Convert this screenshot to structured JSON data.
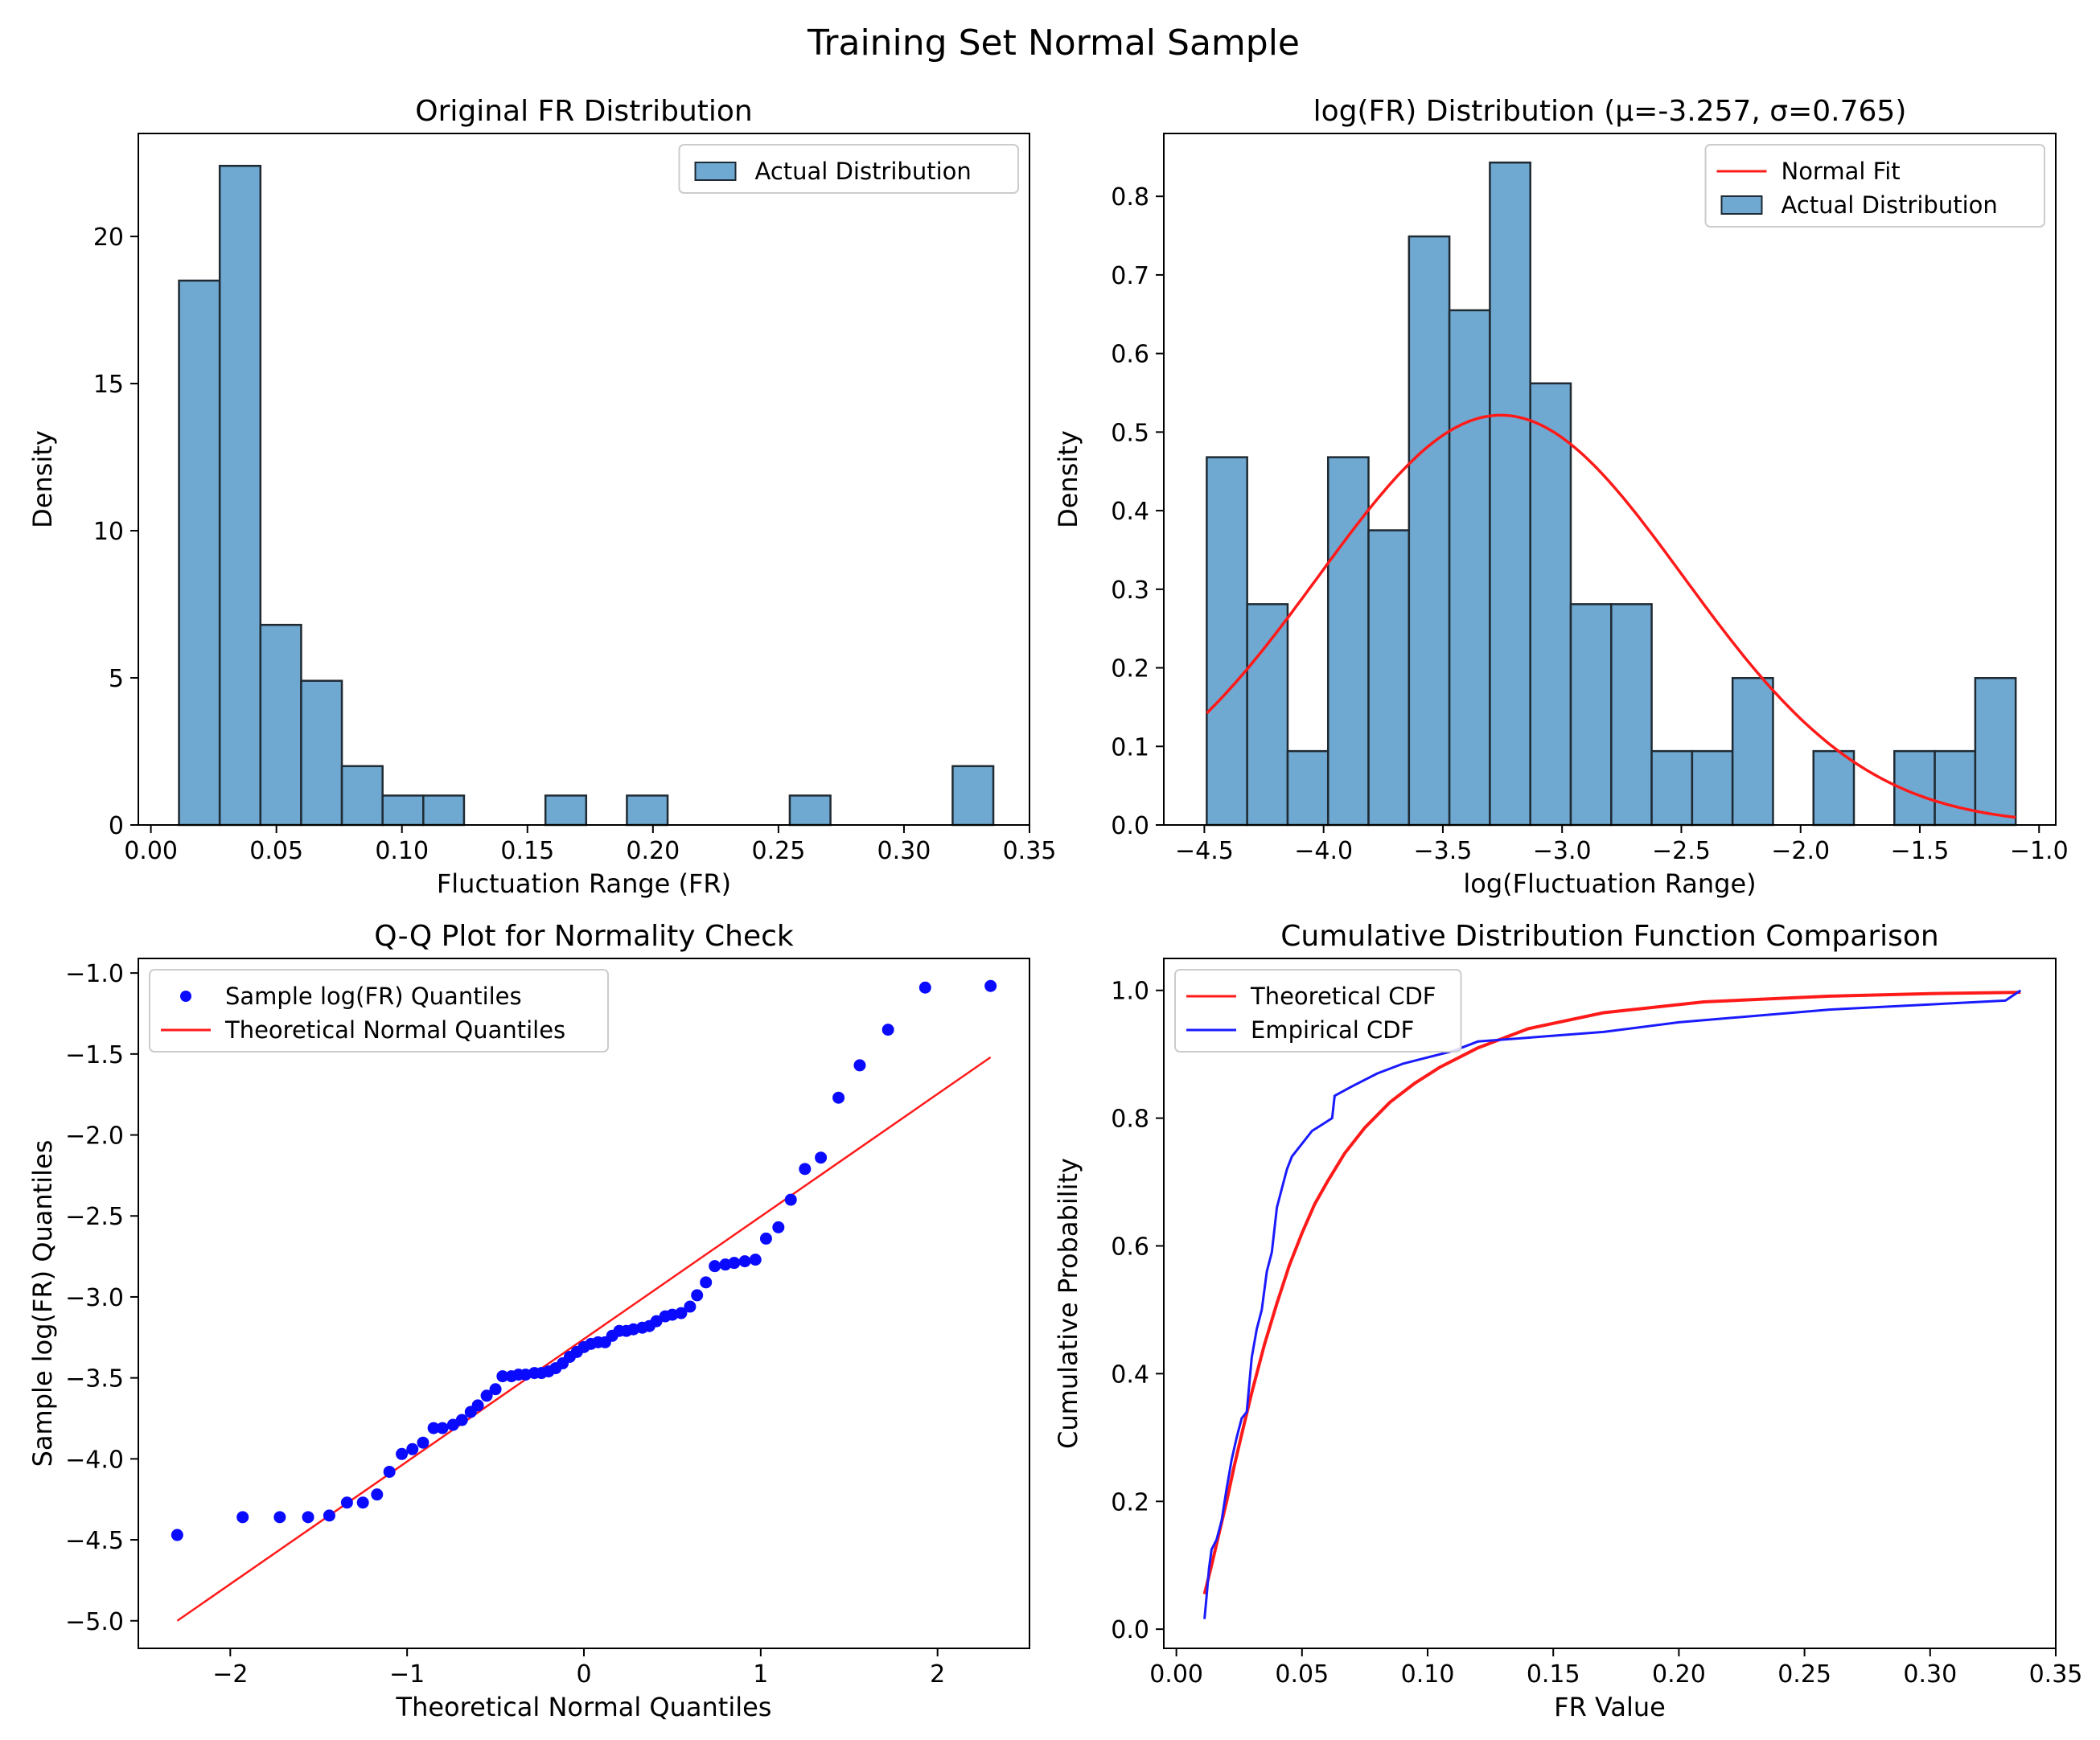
{
  "figure": {
    "title": "Training Set Normal Sample"
  },
  "colors": {
    "bar_fill": "#6fa8d0",
    "bar_edge": "#1f2a33",
    "fit_line": "#ff1a1a",
    "points": "#0a0aff",
    "empirical_line": "#1a1aff",
    "axis": "#000000"
  },
  "chart_data": [
    {
      "id": "hist-fr",
      "type": "bar",
      "title": "Original FR Distribution",
      "xlabel": "Fluctuation Range (FR)",
      "ylabel": "Density",
      "xlim": [
        -0.005,
        0.35
      ],
      "ylim": [
        0,
        23.5
      ],
      "xticks": [
        0.0,
        0.05,
        0.1,
        0.15,
        0.2,
        0.25,
        0.3,
        0.35
      ],
      "xtick_labels": [
        "0.00",
        "0.05",
        "0.10",
        "0.15",
        "0.20",
        "0.25",
        "0.30",
        "0.35"
      ],
      "yticks": [
        0,
        5,
        10,
        15,
        20
      ],
      "ytick_labels": [
        "0",
        "5",
        "10",
        "15",
        "20"
      ],
      "legend": [
        "Actual Distribution"
      ],
      "legend_loc": "upper right",
      "bin_start": 0.0112,
      "bin_width": 0.01622,
      "values": [
        18.5,
        22.4,
        6.8,
        4.9,
        2.0,
        1.0,
        1.0,
        0,
        0,
        1.0,
        0,
        1.0,
        0,
        0,
        0,
        1.0,
        0,
        0,
        0,
        2.0
      ]
    },
    {
      "id": "hist-logfr",
      "type": "bar",
      "title": "log(FR) Distribution (μ=-3.257, σ=0.765)",
      "xlabel": "log(Fluctuation Range)",
      "ylabel": "Density",
      "xlim": [
        -4.67,
        -0.93
      ],
      "ylim": [
        0,
        0.88
      ],
      "xticks": [
        -4.5,
        -4.0,
        -3.5,
        -3.0,
        -2.5,
        -2.0,
        -1.5,
        -1.0
      ],
      "xtick_labels": [
        "−4.5",
        "−4.0",
        "−3.5",
        "−3.0",
        "−2.5",
        "−2.0",
        "−1.5",
        "−1.0"
      ],
      "yticks": [
        0.0,
        0.1,
        0.2,
        0.3,
        0.4,
        0.5,
        0.6,
        0.7,
        0.8
      ],
      "ytick_labels": [
        "0.0",
        "0.1",
        "0.2",
        "0.3",
        "0.4",
        "0.5",
        "0.6",
        "0.7",
        "0.8"
      ],
      "legend": [
        "Normal Fit",
        "Actual Distribution"
      ],
      "legend_loc": "upper right",
      "bin_start": -4.49,
      "bin_width": 0.1696,
      "values": [
        0.468,
        0.281,
        0.094,
        0.468,
        0.375,
        0.749,
        0.655,
        0.843,
        0.562,
        0.281,
        0.281,
        0.094,
        0.094,
        0.187,
        0,
        0.094,
        0,
        0.094,
        0.094,
        0.187
      ],
      "fit": {
        "mu": -3.257,
        "sigma": 0.765,
        "x_range": [
          -4.49,
          -1.098
        ]
      }
    },
    {
      "id": "qq-plot",
      "type": "scatter",
      "title": "Q-Q Plot for Normality Check",
      "xlabel": "Theoretical Normal Quantiles",
      "ylabel": "Sample log(FR) Quantiles",
      "xlim": [
        -2.52,
        2.52
      ],
      "ylim": [
        -5.17,
        -0.91
      ],
      "xticks": [
        -2,
        -1,
        0,
        1,
        2
      ],
      "xtick_labels": [
        "−2",
        "−1",
        "0",
        "1",
        "2"
      ],
      "yticks": [
        -5.0,
        -4.5,
        -4.0,
        -3.5,
        -3.0,
        -2.5,
        -2.0,
        -1.5,
        -1.0
      ],
      "ytick_labels": [
        "−5.0",
        "−4.5",
        "−4.0",
        "−3.5",
        "−3.0",
        "−2.5",
        "−2.0",
        "−1.5",
        "−1.0"
      ],
      "legend": [
        "Sample log(FR) Quantiles",
        "Theoretical Normal Quantiles"
      ],
      "legend_loc": "upper left",
      "line": {
        "x": [
          -2.3,
          2.3
        ],
        "y": [
          -5.0,
          -1.52
        ]
      },
      "points": {
        "x": [
          -2.3,
          -1.93,
          -1.72,
          -1.56,
          -1.44,
          -1.34,
          -1.25,
          -1.17,
          -1.1,
          -1.03,
          -0.97,
          -0.91,
          -0.85,
          -0.8,
          -0.74,
          -0.69,
          -0.64,
          -0.6,
          -0.55,
          -0.5,
          -0.46,
          -0.41,
          -0.37,
          -0.33,
          -0.28,
          -0.24,
          -0.2,
          -0.16,
          -0.12,
          -0.08,
          -0.04,
          0.0,
          0.04,
          0.08,
          0.12,
          0.16,
          0.2,
          0.24,
          0.28,
          0.33,
          0.37,
          0.41,
          0.46,
          0.5,
          0.55,
          0.6,
          0.64,
          0.69,
          0.74,
          0.8,
          0.85,
          0.91,
          0.97,
          1.03,
          1.1,
          1.17,
          1.25,
          1.34,
          1.44,
          1.56,
          1.72,
          1.93,
          2.3
        ],
        "y": [
          -4.47,
          -4.36,
          -4.36,
          -4.36,
          -4.35,
          -4.27,
          -4.27,
          -4.22,
          -4.08,
          -3.97,
          -3.94,
          -3.9,
          -3.81,
          -3.81,
          -3.79,
          -3.76,
          -3.71,
          -3.67,
          -3.61,
          -3.57,
          -3.49,
          -3.49,
          -3.48,
          -3.48,
          -3.47,
          -3.47,
          -3.46,
          -3.44,
          -3.41,
          -3.37,
          -3.34,
          -3.31,
          -3.29,
          -3.28,
          -3.28,
          -3.24,
          -3.21,
          -3.21,
          -3.2,
          -3.19,
          -3.18,
          -3.15,
          -3.12,
          -3.11,
          -3.1,
          -3.06,
          -2.99,
          -2.91,
          -2.81,
          -2.8,
          -2.79,
          -2.78,
          -2.77,
          -2.64,
          -2.57,
          -2.4,
          -2.21,
          -2.14,
          -1.77,
          -1.57,
          -1.35,
          -1.09,
          -1.08
        ]
      }
    },
    {
      "id": "cdf-compare",
      "type": "line",
      "title": "Cumulative Distribution Function Comparison",
      "xlabel": "FR Value",
      "ylabel": "Cumulative Probability",
      "xlim": [
        -0.005,
        0.35
      ],
      "ylim": [
        -0.03,
        1.05
      ],
      "xticks": [
        0.0,
        0.05,
        0.1,
        0.15,
        0.2,
        0.25,
        0.3,
        0.35
      ],
      "xtick_labels": [
        "0.00",
        "0.05",
        "0.10",
        "0.15",
        "0.20",
        "0.25",
        "0.30",
        "0.35"
      ],
      "yticks": [
        0.0,
        0.2,
        0.4,
        0.6,
        0.8,
        1.0
      ],
      "ytick_labels": [
        "0.0",
        "0.2",
        "0.4",
        "0.6",
        "0.8",
        "1.0"
      ],
      "legend": [
        "Theoretical CDF",
        "Empirical CDF"
      ],
      "legend_loc": "upper left",
      "series": [
        {
          "name": "Theoretical CDF",
          "x": [
            0.0112,
            0.014,
            0.017,
            0.02,
            0.023,
            0.026,
            0.03,
            0.035,
            0.04,
            0.045,
            0.05,
            0.055,
            0.06,
            0.067,
            0.075,
            0.085,
            0.095,
            0.105,
            0.12,
            0.14,
            0.17,
            0.21,
            0.26,
            0.3,
            0.336
          ],
          "y": [
            0.055,
            0.1,
            0.15,
            0.2,
            0.255,
            0.305,
            0.37,
            0.445,
            0.51,
            0.57,
            0.62,
            0.665,
            0.7,
            0.745,
            0.785,
            0.825,
            0.855,
            0.88,
            0.91,
            0.94,
            0.965,
            0.982,
            0.991,
            0.995,
            0.997
          ]
        },
        {
          "name": "Empirical CDF",
          "x": [
            0.0112,
            0.012,
            0.013,
            0.014,
            0.016,
            0.018,
            0.02,
            0.022,
            0.024,
            0.026,
            0.028,
            0.03,
            0.032,
            0.034,
            0.036,
            0.038,
            0.04,
            0.042,
            0.044,
            0.046,
            0.048,
            0.05,
            0.054,
            0.058,
            0.062,
            0.063,
            0.07,
            0.08,
            0.09,
            0.1,
            0.11,
            0.12,
            0.17,
            0.2,
            0.26,
            0.33,
            0.336
          ],
          "y": [
            0.016,
            0.05,
            0.095,
            0.125,
            0.14,
            0.17,
            0.22,
            0.265,
            0.3,
            0.33,
            0.34,
            0.425,
            0.47,
            0.5,
            0.56,
            0.59,
            0.66,
            0.69,
            0.72,
            0.74,
            0.75,
            0.76,
            0.78,
            0.79,
            0.8,
            0.835,
            0.85,
            0.87,
            0.885,
            0.895,
            0.905,
            0.92,
            0.935,
            0.95,
            0.97,
            0.984,
            1.0
          ]
        }
      ]
    }
  ]
}
